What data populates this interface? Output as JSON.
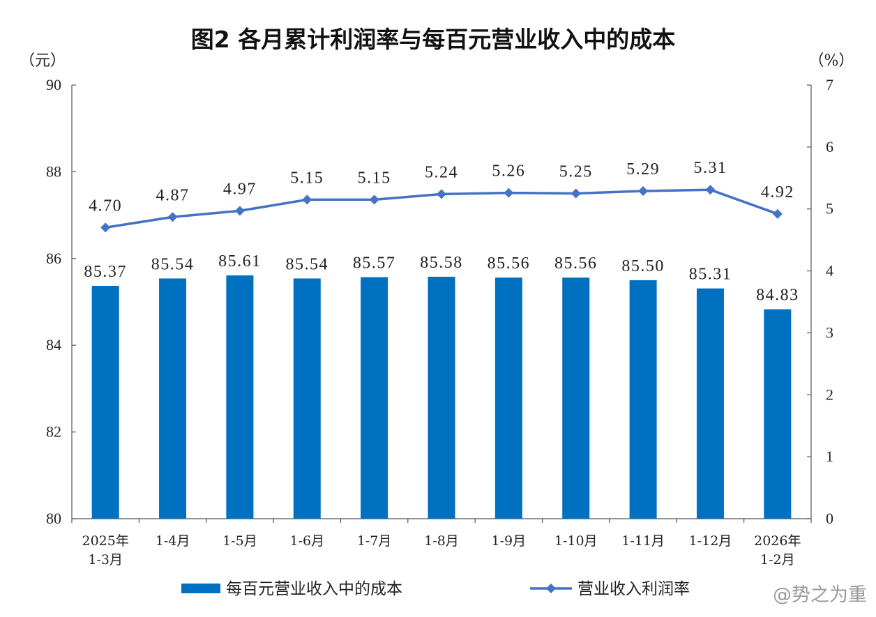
{
  "chart_data": {
    "type": "bar+line",
    "title": "图2  各月累计利润率与每百元营业收入中的成本",
    "left_axis": {
      "unit": "（元）",
      "min": 80,
      "max": 90,
      "ticks": [
        "80",
        "82",
        "84",
        "86",
        "88",
        "90"
      ]
    },
    "right_axis": {
      "unit": "（%）",
      "min": 0,
      "max": 7,
      "ticks": [
        "0",
        "1",
        "2",
        "3",
        "4",
        "5",
        "6",
        "7"
      ]
    },
    "categories": [
      [
        "2025年",
        "1-3月"
      ],
      [
        "1-4月"
      ],
      [
        "1-5月"
      ],
      [
        "1-6月"
      ],
      [
        "1-7月"
      ],
      [
        "1-8月"
      ],
      [
        "1-9月"
      ],
      [
        "1-10月"
      ],
      [
        "1-11月"
      ],
      [
        "1-12月"
      ],
      [
        "2026年",
        "1-2月"
      ]
    ],
    "series": [
      {
        "name": "每百元营业收入中的成本",
        "type": "bar",
        "axis": "left",
        "color": "#0070c0",
        "values": [
          85.37,
          85.54,
          85.61,
          85.54,
          85.57,
          85.58,
          85.56,
          85.56,
          85.5,
          85.31,
          84.83
        ],
        "labels": [
          "85.37",
          "85.54",
          "85.61",
          "85.54",
          "85.57",
          "85.58",
          "85.56",
          "85.56",
          "85.50",
          "85.31",
          "84.83"
        ]
      },
      {
        "name": "营业收入利润率",
        "type": "line",
        "axis": "right",
        "color": "#4472c4",
        "values": [
          4.7,
          4.87,
          4.97,
          5.15,
          5.15,
          5.24,
          5.26,
          5.25,
          5.29,
          5.31,
          4.92
        ],
        "labels": [
          "4.70",
          "4.87",
          "4.97",
          "5.15",
          "5.15",
          "5.24",
          "5.26",
          "5.25",
          "5.29",
          "5.31",
          "4.92"
        ]
      }
    ],
    "legend_position": "bottom",
    "grid": false
  },
  "watermark": "@势之为重"
}
